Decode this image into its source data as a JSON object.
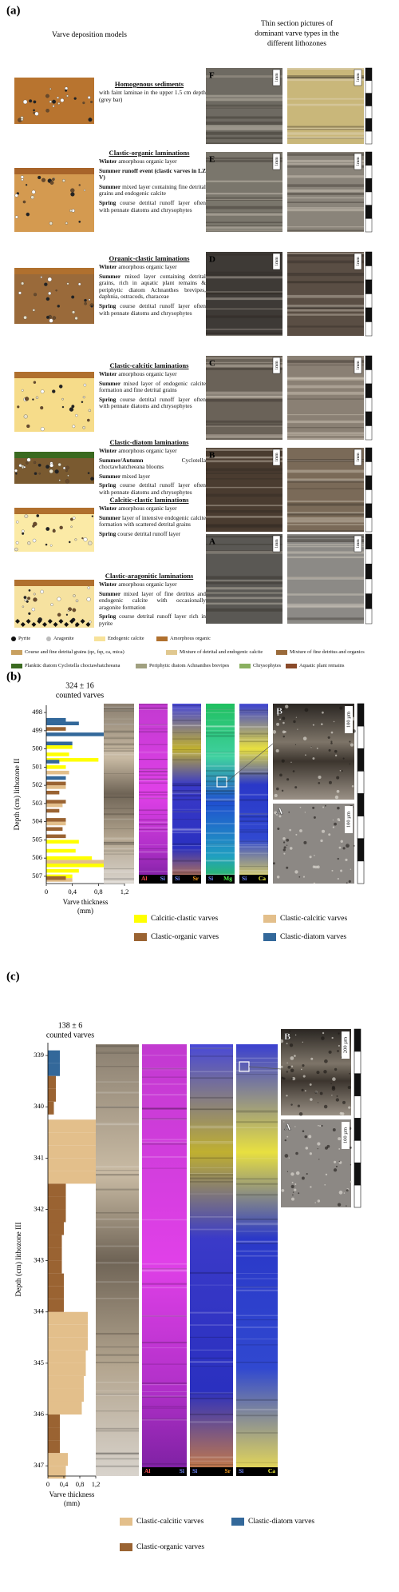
{
  "figure_a": {
    "label": "(a)",
    "left_heading": "Varve deposition models",
    "right_heading": [
      "Thin section pictures of",
      "dominant varve types in the",
      "different lithozones"
    ],
    "photo_scale": "1mm",
    "photo_letters": [
      "F",
      "E",
      "D",
      "C",
      "B",
      "A"
    ],
    "models": [
      {
        "title": "Homogenous sediments",
        "note": "with faint laminae in the upper 1.5 cm depth (grey bar)"
      },
      {
        "title": "Clastic-organic laminations",
        "layers": [
          {
            "season": "Winter",
            "text": "amorphous organic layer"
          },
          {
            "season": "Summer runoff event (clastic varves in LZ V)"
          },
          {
            "season": "Summer",
            "text": "mixed layer containing fine detrital grains and endogenic calcite"
          },
          {
            "season": "Spring",
            "text": "course detrital runoff layer often with pennate diatoms and chrysophytes"
          }
        ]
      },
      {
        "title": "Organic-clastic laminations",
        "layers": [
          {
            "season": "Winter",
            "text": "amorphous organic layer"
          },
          {
            "season": "Summer",
            "text": "mixed layer containing detrital grains, rich in aquatic plant remains & periphytic diatom Achnanthes brevipes, daphnia, ostracods, characeae"
          },
          {
            "season": "Spring",
            "text": "course detrital runoff layer often with pennate diatoms and chrysophytes"
          }
        ]
      },
      {
        "title": "Clastic-calcitic laminations",
        "layers": [
          {
            "season": "Winter",
            "text": "amorphous organic layer"
          },
          {
            "season": "Summer",
            "text": "mixed layer of endogenic calcite formation and fine detrital grains"
          },
          {
            "season": "Spring",
            "text": "course detrital runoff layer often with pennate diatoms and chrysophytes"
          }
        ]
      },
      {
        "title": "Clastic-diatom laminations",
        "layers": [
          {
            "season": "Winter",
            "text": "amorphous organic layer"
          },
          {
            "season": "Summer/Autumn",
            "text": "Cyclotella choctawhatcheeana blooms"
          },
          {
            "season": "Summer",
            "text": "mixed layer"
          },
          {
            "season": "Spring",
            "text": "course detrital runoff layer often with pennate diatoms and chrysophytes"
          }
        ]
      },
      {
        "title": "Calcitic-clastic laminations",
        "layers": [
          {
            "season": "Winter",
            "text": "amorphous organic layer"
          },
          {
            "season": "Summer",
            "text": "layer of intensive endogenic calcite formation with scattered detrital grains"
          },
          {
            "season": "Spring",
            "text": "course detrital runoff layer"
          }
        ]
      },
      {
        "title": "Clastic-aragonitic laminations",
        "layers": [
          {
            "season": "Winter",
            "text": "amorphous organic layer"
          },
          {
            "season": "Summer",
            "text": "mixed layer of fine detritus and endogenic calcite with occasionally aragonite formation"
          },
          {
            "season": "Spring",
            "text": "course detrital runoff layer rich in pyrite"
          }
        ]
      }
    ],
    "legend": [
      "Pyrite",
      "Aragonite",
      "Endogenic calcite",
      "Amorphous organic",
      "Course and fine detrital grains (qz, fsp, ca, mica)",
      "Mixture of detrital and endogenic calcite",
      "Mixture of fine detritus and organics",
      "Planktic diatom Cyclotella choctawhatcheeana",
      "Periphytic diatom Achnanthes brevipes",
      "Chrysophytes",
      "Aquatic plant remains"
    ]
  },
  "chart_data": [
    {
      "type": "bar",
      "orientation": "horizontal",
      "label": "(b)",
      "title": [
        "324 ± 16",
        "counted varves"
      ],
      "ylabel": "Depth (cm) lithozone II",
      "xlabel": [
        "Varve thickness",
        "(mm)"
      ],
      "xlim": [
        0,
        1.2
      ],
      "xticks": [
        0,
        {
          "value": 0.4,
          "label": "0,4"
        },
        {
          "value": 0.8,
          "label": "0,8"
        },
        {
          "value": 1.2,
          "label": "1,2"
        }
      ],
      "ylim": [
        497.6,
        507.4
      ],
      "yticks": [
        498,
        499,
        500,
        501,
        502,
        503,
        504,
        505,
        506,
        507
      ],
      "series": [
        {
          "name": "Calcitic-clastic varves",
          "color": "#ffff00",
          "y": [
            499.8,
            500.2,
            500.5,
            500.9,
            505.0,
            505.5,
            505.9,
            506.3,
            506.6,
            506.9
          ],
          "values": [
            0.4,
            0.35,
            0.8,
            0.3,
            0.5,
            0.45,
            0.7,
            1.2,
            0.5,
            0.4
          ]
        },
        {
          "name": "Clastic-calcitic varves",
          "color": "#e3bf8b",
          "y": [
            501.2,
            502.0,
            503.0,
            504.0,
            506.1,
            507.1
          ],
          "values": [
            0.35,
            0.3,
            0.25,
            0.3,
            0.9,
            0.4
          ]
        },
        {
          "name": "Clastic-organic varves",
          "color": "#9a6332",
          "y": [
            498.8,
            501.8,
            502.3,
            502.8,
            503.3,
            503.8,
            504.3,
            504.7,
            507.0
          ],
          "values": [
            0.3,
            0.3,
            0.2,
            0.3,
            0.2,
            0.3,
            0.25,
            0.3,
            0.3
          ]
        },
        {
          "name": "Clastic-diatom varves",
          "color": "#33689a",
          "y": [
            498.3,
            498.5,
            499.1,
            499.6,
            500.6,
            501.5
          ],
          "values": [
            0.3,
            0.5,
            0.95,
            0.4,
            0.2,
            0.3
          ]
        }
      ],
      "map_strips": [
        [
          "Al",
          "Si"
        ],
        [
          "Si",
          "Sr"
        ],
        [
          "Si",
          "Mg"
        ],
        [
          "Si",
          "Ca"
        ]
      ],
      "thin_sections": [
        {
          "letter": "B",
          "scale": "100 µm"
        },
        {
          "letter": "A",
          "scale": "100 µm"
        }
      ]
    },
    {
      "type": "bar",
      "orientation": "horizontal",
      "label": "(c)",
      "title": [
        "138 ± 6",
        "counted varves"
      ],
      "ylabel": "Depth (cm) lithozone III",
      "xlabel": [
        "Varve thickness",
        "(mm)"
      ],
      "xlim": [
        0,
        1.2
      ],
      "xticks": [
        0,
        {
          "value": 0.4,
          "label": "0,4"
        },
        {
          "value": 0.8,
          "label": "0,8"
        },
        {
          "value": 1.2,
          "label": "1,2"
        }
      ],
      "ylim": [
        338.75,
        347.2
      ],
      "yticks": [
        339,
        340,
        341,
        342,
        343,
        344,
        345,
        346,
        347
      ],
      "series": [
        {
          "name": "Clastic-calcitic varves",
          "color": "#e3bf8b",
          "y": [
            340.25,
            340.5,
            340.75,
            341.0,
            341.25,
            344.0,
            344.25,
            344.5,
            344.75,
            345.0,
            345.25,
            345.5,
            345.75,
            346.75,
            347.0
          ],
          "values": [
            1.2,
            1.2,
            1.2,
            1.2,
            1.2,
            1.0,
            1.0,
            1.0,
            0.95,
            0.95,
            0.9,
            0.9,
            0.85,
            0.5,
            0.45
          ]
        },
        {
          "name": "Clastic-diatom varves",
          "color": "#33689a",
          "y": [
            338.9,
            339.15
          ],
          "values": [
            0.3,
            0.3
          ]
        },
        {
          "name": "Clastic-organic varves",
          "color": "#9a6332",
          "y": [
            339.4,
            339.65,
            339.9,
            341.5,
            341.75,
            342.0,
            342.25,
            342.5,
            342.75,
            343.0,
            343.25,
            343.5,
            343.75,
            346.0,
            346.25,
            346.5
          ],
          "values": [
            0.2,
            0.2,
            0.15,
            0.45,
            0.45,
            0.45,
            0.4,
            0.35,
            0.35,
            0.35,
            0.4,
            0.4,
            0.4,
            0.3,
            0.3,
            0.3
          ]
        }
      ],
      "map_strips": [
        [
          "Al",
          "Si"
        ],
        [
          "Si",
          "Sr"
        ],
        [
          "Si",
          "Ca"
        ]
      ],
      "thin_sections": [
        {
          "letter": "B",
          "scale": "200 µm"
        },
        {
          "letter": "A",
          "scale": "100 µm"
        }
      ]
    }
  ]
}
